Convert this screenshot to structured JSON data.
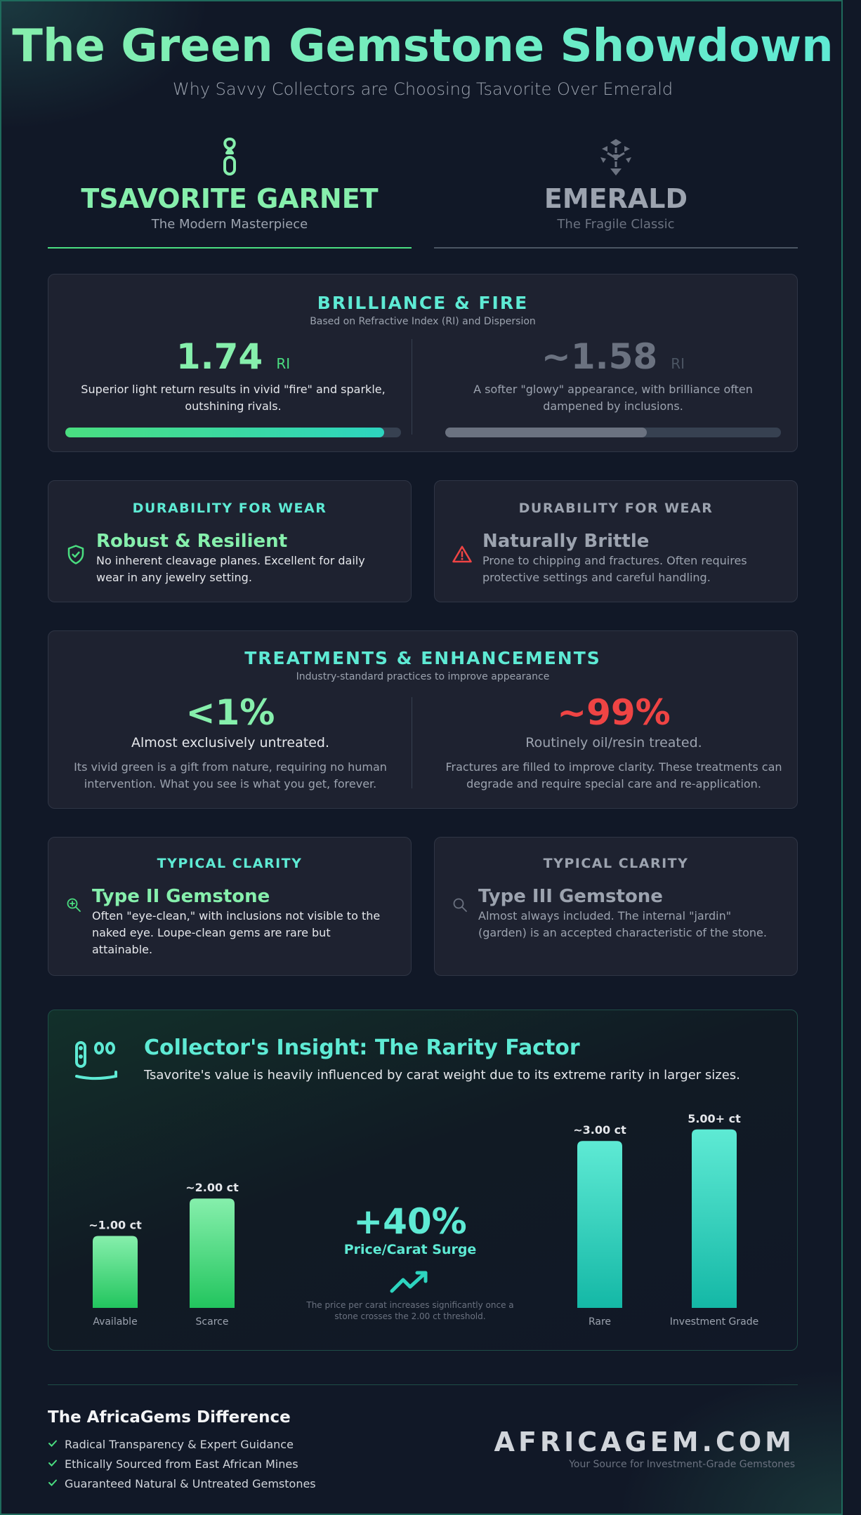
{
  "header": {
    "title": "The Green Gemstone Showdown",
    "subtitle": "Why Savvy Collectors are Choosing Tsavorite Over Emerald"
  },
  "gems": {
    "tsavorite": {
      "name": "TSAVORITE GARNET",
      "tagline": "The Modern Masterpiece",
      "icon": "gem-icon"
    },
    "emerald": {
      "name": "EMERALD",
      "tagline": "The Fragile Classic",
      "icon": "crystal-icon"
    }
  },
  "brilliance": {
    "title": "BRILLIANCE & FIRE",
    "subtitle": "Based on Refractive Index (RI) and Dispersion",
    "tsavorite": {
      "value": "1.74",
      "unit": "RI",
      "desc": "Superior light return results in vivid \"fire\" and sparkle, outshining rivals.",
      "level": 0.95
    },
    "emerald": {
      "value": "~1.58",
      "unit": "RI",
      "desc": "A softer \"glowy\" appearance, with brilliance often dampened by inclusions.",
      "level": 0.6
    }
  },
  "durability": {
    "tsavorite": {
      "title": "DURABILITY FOR WEAR",
      "head": "Robust & Resilient",
      "desc": "No inherent cleavage planes. Excellent for daily wear in any jewelry setting.",
      "icon": "shield-check-icon"
    },
    "emerald": {
      "title": "DURABILITY FOR WEAR",
      "head": "Naturally Brittle",
      "desc": "Prone to chipping and fractures. Often requires protective settings and careful handling.",
      "icon": "warning-icon"
    }
  },
  "treatments": {
    "title": "TREATMENTS & ENHANCEMENTS",
    "subtitle": "Industry-standard practices to improve appearance",
    "tsavorite": {
      "value": "<1%",
      "head": "Almost exclusively untreated.",
      "desc": "Its vivid green is a gift from nature, requiring no human intervention. What you see is what you get, forever."
    },
    "emerald": {
      "value": "~99%",
      "head": "Routinely oil/resin treated.",
      "desc": "Fractures are filled to improve clarity. These treatments can degrade and require special care and re-application."
    }
  },
  "clarity": {
    "tsavorite": {
      "title": "TYPICAL CLARITY",
      "head": "Type II Gemstone",
      "desc": "Often \"eye-clean,\" with inclusions not visible to the naked eye. Loupe-clean gems are rare but attainable.",
      "icon": "zoom-in-icon"
    },
    "emerald": {
      "title": "TYPICAL CLARITY",
      "head": "Type III Gemstone",
      "desc": "Almost always included. The internal \"jardin\" (garden) is an accepted characteristic of the stone.",
      "icon": "search-icon"
    }
  },
  "insight": {
    "title": "Collector's Insight: The Rarity Factor",
    "desc": "Tsavorite's value is heavily influenced by carat weight due to its extreme rarity in larger sizes.",
    "surge_value": "+40%",
    "surge_label": "Price/Carat Surge",
    "surge_note": "The price per carat increases significantly once a stone crosses the 2.00 ct threshold.",
    "icon": "gem-face-icon",
    "trend_icon": "trending-up-icon"
  },
  "chart_data": {
    "type": "bar",
    "categories": [
      "Available",
      "Scarce",
      "Rare",
      "Investment Grade"
    ],
    "data_labels": [
      "~1.00 ct",
      "~2.00 ct",
      "~3.00 ct",
      "5.00+ ct"
    ],
    "values": [
      25,
      38,
      58,
      62
    ],
    "title": "",
    "xlabel": "",
    "ylabel": ""
  },
  "footer": {
    "title": "The AfricaGems Difference",
    "points": [
      "Radical Transparency & Expert Guidance",
      "Ethically Sourced from East African Mines",
      "Guaranteed Natural & Untreated Gemstones"
    ],
    "brand": "AFRICAGEM.COM",
    "brand_tagline": "Your Source for Investment-Grade Gemstones"
  },
  "colors": {
    "tsavorite": "#86efac",
    "accent": "#5eead4",
    "emerald_gray": "#9ca3af",
    "danger": "#ef4444",
    "background": "#111827",
    "card": "#1e2230"
  }
}
